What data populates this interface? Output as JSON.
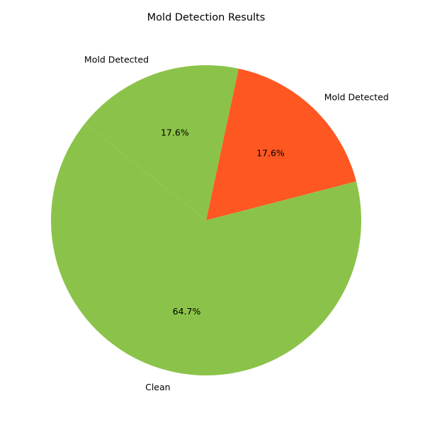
{
  "chart_data": {
    "type": "pie",
    "title": "Mold Detection Results",
    "slices": [
      {
        "label": "Mold Detected",
        "value": 17.6,
        "pct_label": "17.6%",
        "color": "#ff5722"
      },
      {
        "label": "Mold Detected",
        "value": 17.6,
        "pct_label": "17.6%",
        "color": "#8bc34a"
      },
      {
        "label": "Clean",
        "value": 64.7,
        "pct_label": "64.7%",
        "color": "#8bc34a"
      }
    ],
    "legend": "none"
  }
}
